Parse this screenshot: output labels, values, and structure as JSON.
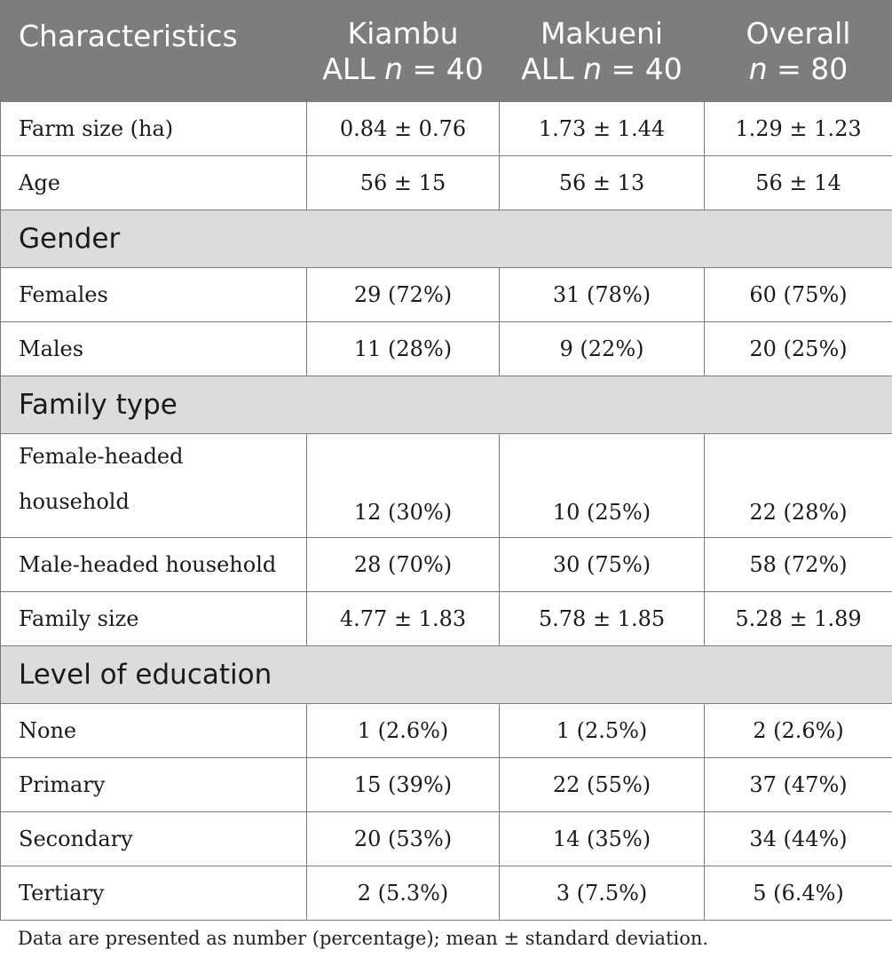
{
  "table": {
    "headers": [
      {
        "line1": "Characteristics",
        "line2": ""
      },
      {
        "line1": "Kiambu",
        "line2_pre": "ALL ",
        "line2_italic": "n",
        "line2_post": " = 40"
      },
      {
        "line1": "Makueni",
        "line2_pre": "ALL ",
        "line2_italic": "n",
        "line2_post": " = 40"
      },
      {
        "line1": "Overall",
        "line2_pre": "",
        "line2_italic": "n",
        "line2_post": " = 80"
      }
    ],
    "rows": [
      {
        "type": "data",
        "label": "Farm size (ha)",
        "kiambu": "0.84 ± 0.76",
        "makueni": "1.73 ± 1.44",
        "overall": "1.29 ± 1.23"
      },
      {
        "type": "data",
        "label": "Age",
        "kiambu": "56 ± 15",
        "makueni": "56 ± 13",
        "overall": "56 ± 14"
      },
      {
        "type": "section",
        "label": "Gender"
      },
      {
        "type": "data",
        "label": "Females",
        "kiambu": "29 (72%)",
        "makueni": "31 (78%)",
        "overall": "60 (75%)"
      },
      {
        "type": "data",
        "label": "Males",
        "kiambu": "11 (28%)",
        "makueni": "9 (22%)",
        "overall": "20 (25%)"
      },
      {
        "type": "section",
        "label": "Family type"
      },
      {
        "type": "tall",
        "label_line1": "Female-headed",
        "label_line2": "household",
        "kiambu": "12 (30%)",
        "makueni": "10 (25%)",
        "overall": "22 (28%)"
      },
      {
        "type": "data",
        "label": "Male-headed household",
        "kiambu": "28 (70%)",
        "makueni": "30 (75%)",
        "overall": "58 (72%)"
      },
      {
        "type": "data",
        "label": "Family size",
        "kiambu": "4.77 ± 1.83",
        "makueni": "5.78 ± 1.85",
        "overall": "5.28 ± 1.89"
      },
      {
        "type": "section",
        "label": "Level of education"
      },
      {
        "type": "data",
        "label": "None",
        "kiambu": "1 (2.6%)",
        "makueni": "1 (2.5%)",
        "overall": "2 (2.6%)"
      },
      {
        "type": "data",
        "label": "Primary",
        "kiambu": "15 (39%)",
        "makueni": "22 (55%)",
        "overall": "37 (47%)"
      },
      {
        "type": "data",
        "label": "Secondary",
        "kiambu": "20 (53%)",
        "makueni": "14 (35%)",
        "overall": "34 (44%)"
      },
      {
        "type": "data",
        "label": "Tertiary",
        "kiambu": "2 (5.3%)",
        "makueni": "3 (7.5%)",
        "overall": "5 (6.4%)"
      }
    ]
  },
  "footnote": "Data are presented as number (percentage); mean ± standard deviation.",
  "colors": {
    "header_bg": "#7d7d7d",
    "section_bg": "#dcdcdc",
    "border": "#7a7a7a"
  }
}
